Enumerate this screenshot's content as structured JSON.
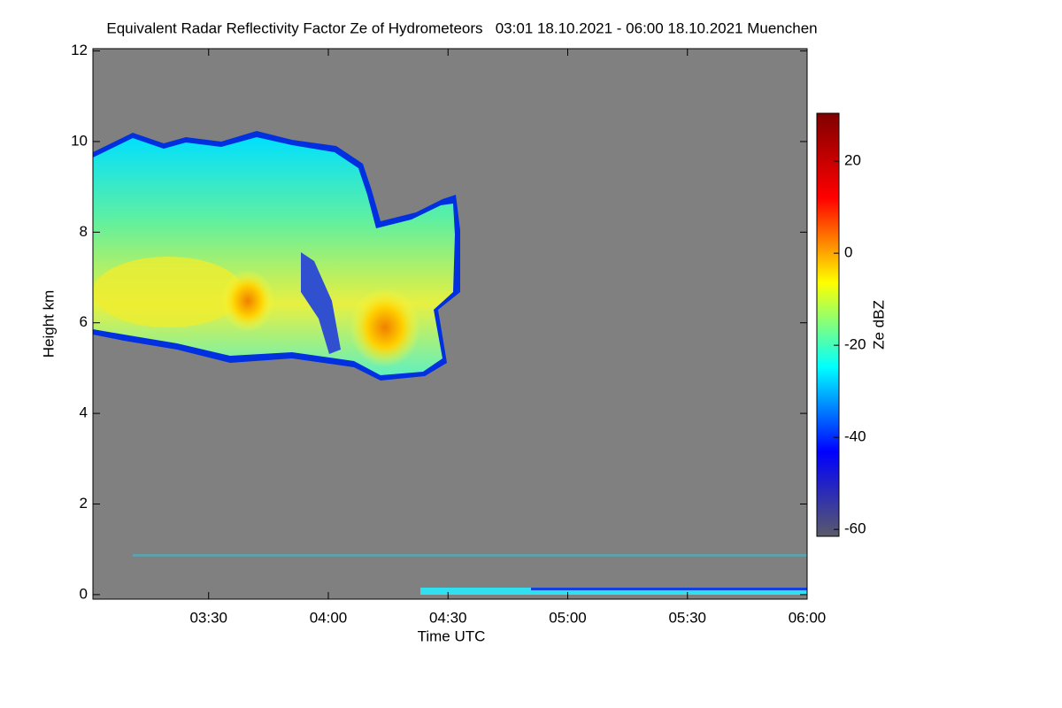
{
  "chart_data": {
    "type": "heatmap",
    "title": "Equivalent Radar Reflectivity Factor Ze of Hydrometeors   03:01 18.10.2021 - 06:00 18.10.2021 Muenchen",
    "x_label": "Time UTC",
    "y_label": "Height km",
    "xlim": [
      181,
      360
    ],
    "xticks": [
      {
        "value": 210,
        "label": "03:30"
      },
      {
        "value": 240,
        "label": "04:00"
      },
      {
        "value": 270,
        "label": "04:30"
      },
      {
        "value": 300,
        "label": "05:00"
      },
      {
        "value": 330,
        "label": "05:30"
      },
      {
        "value": 360,
        "label": "06:00"
      }
    ],
    "ylim": [
      -0.1,
      12.05
    ],
    "yticks": [
      0,
      2,
      4,
      6,
      8,
      10,
      12
    ],
    "background": "#808080",
    "colorbar": {
      "label": "Ze dBZ",
      "lim": [
        -61.5,
        30.4
      ],
      "ticks": [
        -60,
        -40,
        -20,
        0,
        20
      ],
      "colors": [
        "#5a5a6a",
        "#0000ff",
        "#00ffff",
        "#ffff00",
        "#ff0000",
        "#800000"
      ]
    }
  }
}
